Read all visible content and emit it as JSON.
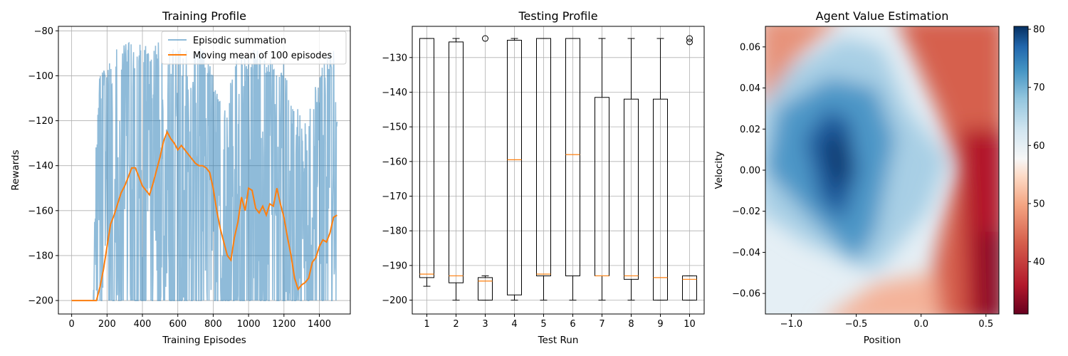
{
  "chart_data": [
    {
      "type": "line",
      "title": "Training Profile",
      "xlabel": "Training Episodes",
      "ylabel": "Rewards",
      "xlim": [
        -75,
        1575
      ],
      "ylim": [
        -206,
        -78
      ],
      "xticks": [
        0,
        200,
        400,
        600,
        800,
        1000,
        1200,
        1400
      ],
      "yticks": [
        -200,
        -180,
        -160,
        -140,
        -120,
        -100,
        -80
      ],
      "grid": true,
      "legend_position": "upper-right",
      "series": [
        {
          "name": "Episodic summation",
          "color": "#1f77b4",
          "alpha": 0.5,
          "style": "noisy-envelope",
          "x": [
            0,
            120,
            140,
            160,
            200,
            240,
            280,
            320,
            360,
            400,
            440,
            480,
            520,
            560,
            600,
            640,
            680,
            720,
            760,
            800,
            840,
            880,
            920,
            960,
            1000,
            1040,
            1080,
            1120,
            1160,
            1200,
            1240,
            1280,
            1320,
            1360,
            1400,
            1440,
            1480,
            1500
          ],
          "max": [
            -200,
            -200,
            -118,
            -98,
            -95,
            -90,
            -85,
            -84,
            -85,
            -86,
            -86,
            -85,
            -85,
            -84,
            -85,
            -85,
            -86,
            -86,
            -90,
            -100,
            -110,
            -112,
            -92,
            -90,
            -88,
            -88,
            -90,
            -92,
            -100,
            -92,
            -110,
            -112,
            -120,
            -110,
            -98,
            -92,
            -88,
            -120
          ],
          "min": [
            -200,
            -200,
            -200,
            -200,
            -200,
            -200,
            -200,
            -200,
            -200,
            -200,
            -200,
            -200,
            -200,
            -200,
            -200,
            -200,
            -200,
            -200,
            -200,
            -200,
            -200,
            -200,
            -200,
            -200,
            -200,
            -200,
            -200,
            -200,
            -200,
            -200,
            -200,
            -200,
            -200,
            -200,
            -200,
            -200,
            -200,
            -200
          ]
        },
        {
          "name": "Moving mean of 100 episodes",
          "color": "#ff7f0e",
          "x": [
            0,
            140,
            160,
            180,
            200,
            220,
            240,
            260,
            280,
            300,
            320,
            340,
            360,
            380,
            400,
            420,
            440,
            460,
            480,
            500,
            520,
            540,
            560,
            580,
            600,
            620,
            640,
            660,
            680,
            700,
            720,
            740,
            760,
            780,
            800,
            820,
            840,
            860,
            880,
            900,
            920,
            940,
            960,
            980,
            1000,
            1020,
            1040,
            1060,
            1080,
            1100,
            1120,
            1140,
            1160,
            1180,
            1200,
            1220,
            1240,
            1260,
            1280,
            1300,
            1320,
            1340,
            1360,
            1380,
            1400,
            1420,
            1440,
            1460,
            1480,
            1500
          ],
          "y": [
            -200,
            -200,
            -194,
            -186,
            -176,
            -166,
            -162,
            -157,
            -152,
            -149,
            -145,
            -141,
            -141,
            -145,
            -149,
            -151,
            -153,
            -148,
            -142,
            -136,
            -129,
            -125,
            -128,
            -130,
            -133,
            -131,
            -133,
            -135,
            -137,
            -139,
            -140,
            -140,
            -141,
            -143,
            -150,
            -160,
            -168,
            -174,
            -180,
            -182,
            -172,
            -165,
            -154,
            -160,
            -150,
            -151,
            -159,
            -161,
            -158,
            -162,
            -157,
            -158,
            -150,
            -157,
            -163,
            -172,
            -180,
            -190,
            -195,
            -193,
            -192,
            -190,
            -183,
            -181,
            -176,
            -173,
            -174,
            -170,
            -163,
            -162
          ]
        }
      ]
    },
    {
      "type": "box",
      "title": "Testing Profile",
      "xlabel": "Test Run",
      "ylabel": "",
      "xlim": [
        0.5,
        10.5
      ],
      "ylim": [
        -204,
        -121
      ],
      "yticks": [
        -200,
        -190,
        -180,
        -170,
        -160,
        -150,
        -140,
        -130
      ],
      "grid": true,
      "categories": [
        "1",
        "2",
        "3",
        "4",
        "5",
        "6",
        "7",
        "8",
        "9",
        "10"
      ],
      "boxes": [
        {
          "whisker_low": -196,
          "q1": -193.5,
          "median": -192.5,
          "q3": -124.5,
          "whisker_high": -124.5,
          "outliers": []
        },
        {
          "whisker_low": -200,
          "q1": -195,
          "median": -193,
          "q3": -125.5,
          "whisker_high": -124.5,
          "outliers": []
        },
        {
          "whisker_low": -200,
          "q1": -200,
          "median": -194.5,
          "q3": -193.5,
          "whisker_high": -193,
          "outliers": [
            -124.5
          ]
        },
        {
          "whisker_low": -200,
          "q1": -198.5,
          "median": -159.5,
          "q3": -125,
          "whisker_high": -124.5,
          "outliers": []
        },
        {
          "whisker_low": -200,
          "q1": -193,
          "median": -192.5,
          "q3": -124.5,
          "whisker_high": -124.5,
          "outliers": []
        },
        {
          "whisker_low": -200,
          "q1": -193,
          "median": -158,
          "q3": -124.5,
          "whisker_high": -124.5,
          "outliers": []
        },
        {
          "whisker_low": -200,
          "q1": -193,
          "median": -193,
          "q3": -141.5,
          "whisker_high": -124.5,
          "outliers": []
        },
        {
          "whisker_low": -200,
          "q1": -194,
          "median": -193,
          "q3": -142,
          "whisker_high": -124.5,
          "outliers": []
        },
        {
          "whisker_low": -200,
          "q1": -200,
          "median": -193.5,
          "q3": -142,
          "whisker_high": -124.5,
          "outliers": []
        },
        {
          "whisker_low": -200,
          "q1": -200,
          "median": -194,
          "q3": -193,
          "whisker_high": -193,
          "outliers": [
            -124.5,
            -125.5
          ]
        }
      ]
    },
    {
      "type": "heatmap",
      "title": "Agent Value Estimation",
      "xlabel": "Position",
      "ylabel": "Velocity",
      "xlim": [
        -1.2,
        0.6
      ],
      "ylim": [
        -0.07,
        0.07
      ],
      "xticks": [
        -1.0,
        -0.5,
        0.0,
        0.5
      ],
      "yticks": [
        -0.06,
        -0.04,
        -0.02,
        0.0,
        0.02,
        0.04,
        0.06
      ],
      "colormap": "RdBu",
      "colorbar": {
        "range": [
          31,
          80.5
        ],
        "ticks": [
          40,
          50,
          60,
          70,
          80
        ]
      },
      "value_peak": {
        "position": -0.65,
        "velocity": 0.0,
        "value": 80
      },
      "value_min": {
        "position": 0.6,
        "velocity": -0.07,
        "value": 31
      }
    }
  ]
}
